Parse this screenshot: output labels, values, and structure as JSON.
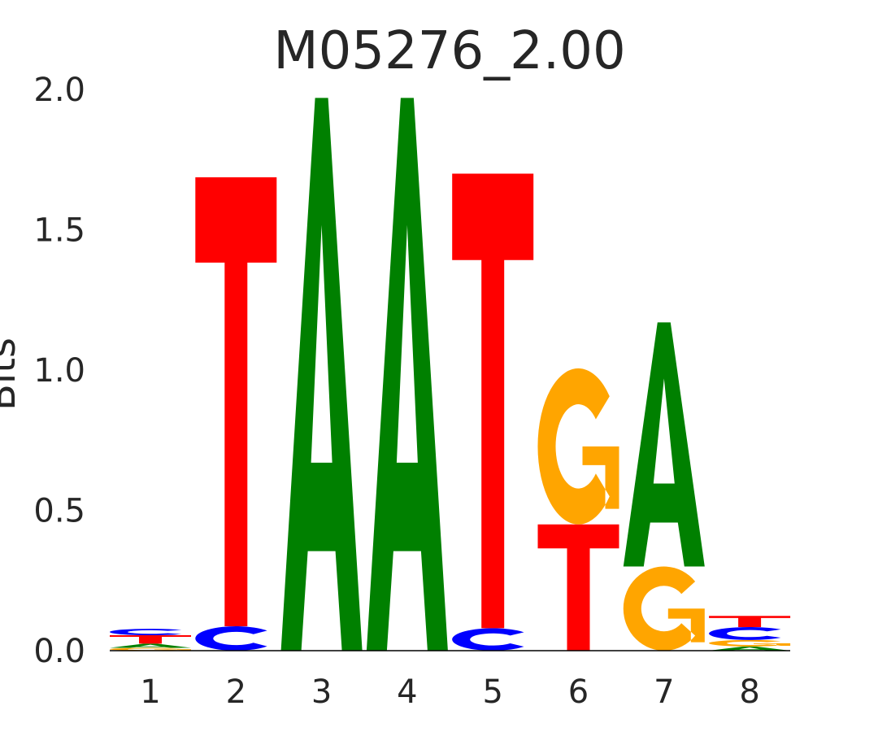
{
  "chart_data": {
    "type": "sequence-logo",
    "title": "M05276_2.00",
    "xlabel": "",
    "ylabel": "Bits",
    "ylim": [
      0,
      2.0
    ],
    "yticks": [
      "0.0",
      "0.5",
      "1.0",
      "1.5",
      "2.0"
    ],
    "ytick_values": [
      0,
      0.5,
      1.0,
      1.5,
      2.0
    ],
    "positions": [
      "1",
      "2",
      "3",
      "4",
      "5",
      "6",
      "7",
      "8"
    ],
    "colors": {
      "A": "#008000",
      "C": "#0000ff",
      "G": "#ffa500",
      "T": "#ff0000"
    },
    "stacks": [
      [
        {
          "base": "G",
          "bits": 0.01
        },
        {
          "base": "A",
          "bits": 0.015
        },
        {
          "base": "T",
          "bits": 0.03
        },
        {
          "base": "C",
          "bits": 0.023
        }
      ],
      [
        {
          "base": "C",
          "bits": 0.087
        },
        {
          "base": "T",
          "bits": 1.6
        }
      ],
      [
        {
          "base": "A",
          "bits": 1.97
        }
      ],
      [
        {
          "base": "A",
          "bits": 1.97
        }
      ],
      [
        {
          "base": "C",
          "bits": 0.08
        },
        {
          "base": "T",
          "bits": 1.62
        }
      ],
      [
        {
          "base": "T",
          "bits": 0.45
        },
        {
          "base": "G",
          "bits": 0.556
        }
      ],
      [
        {
          "base": "G",
          "bits": 0.3
        },
        {
          "base": "A",
          "bits": 0.87
        }
      ],
      [
        {
          "base": "A",
          "bits": 0.015
        },
        {
          "base": "G",
          "bits": 0.023
        },
        {
          "base": "C",
          "bits": 0.046
        },
        {
          "base": "T",
          "bits": 0.04
        }
      ]
    ]
  }
}
